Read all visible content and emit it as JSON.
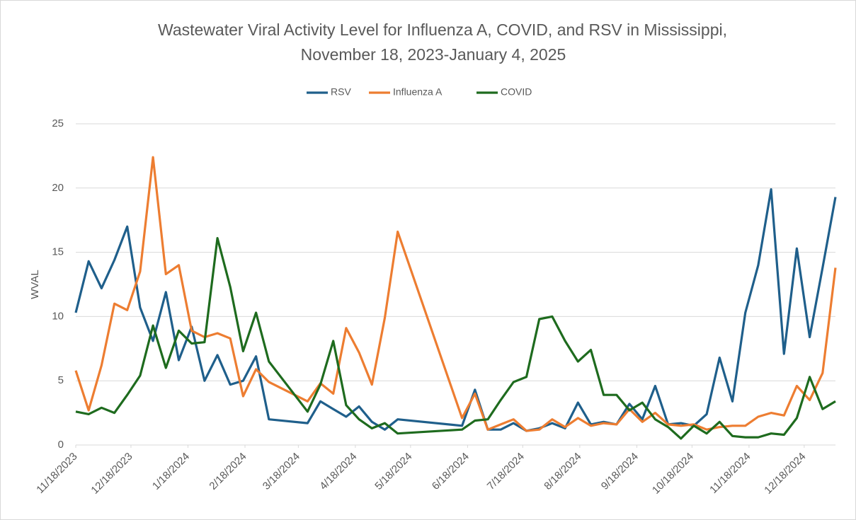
{
  "chart_data": {
    "type": "line",
    "title": [
      "Wastewater Viral Activity Level for Influenza A, COVID,  and RSV  in Mississippi,",
      "November 18, 2023-January 4, 2025"
    ],
    "y_label": "WVAL",
    "x": [
      "2023-11-18",
      "2023-11-25",
      "2023-12-02",
      "2023-12-09",
      "2023-12-16",
      "2023-12-23",
      "2023-12-30",
      "2024-01-06",
      "2024-01-13",
      "2024-01-20",
      "2024-01-27",
      "2024-02-03",
      "2024-02-10",
      "2024-02-17",
      "2024-02-24",
      "2024-03-02",
      "2024-03-23",
      "2024-03-30",
      "2024-04-06",
      "2024-04-13",
      "2024-04-20",
      "2024-04-27",
      "2024-05-04",
      "2024-05-11",
      "2024-06-15",
      "2024-06-22",
      "2024-06-29",
      "2024-07-06",
      "2024-07-13",
      "2024-07-20",
      "2024-07-27",
      "2024-08-03",
      "2024-08-10",
      "2024-08-17",
      "2024-08-24",
      "2024-08-31",
      "2024-09-07",
      "2024-09-14",
      "2024-09-21",
      "2024-09-28",
      "2024-10-05",
      "2024-10-12",
      "2024-10-19",
      "2024-10-26",
      "2024-11-02",
      "2024-11-09",
      "2024-11-16",
      "2024-11-23",
      "2024-11-30",
      "2024-12-07",
      "2024-12-14",
      "2024-12-21",
      "2024-12-28",
      "2025-01-04"
    ],
    "series": [
      {
        "name": "RSV",
        "color": "#1f5f8b",
        "values": [
          10.3,
          14.3,
          12.2,
          14.4,
          17.0,
          10.7,
          8.1,
          11.9,
          6.6,
          9.2,
          5.0,
          7.0,
          4.7,
          5.0,
          6.9,
          2.0,
          1.7,
          3.4,
          2.8,
          2.2,
          3.0,
          1.8,
          1.2,
          2.0,
          1.5,
          4.3,
          1.2,
          1.2,
          1.7,
          1.1,
          1.3,
          1.7,
          1.3,
          3.3,
          1.6,
          1.8,
          1.6,
          3.2,
          2.0,
          4.6,
          1.6,
          1.7,
          1.5,
          2.4,
          6.8,
          3.4,
          10.3,
          14.0,
          19.9,
          7.1,
          15.3,
          8.4,
          13.8,
          19.3
        ]
      },
      {
        "name": "Influenza A",
        "color": "#ed7d31",
        "values": [
          5.8,
          2.7,
          6.2,
          11.0,
          10.5,
          13.5,
          22.4,
          13.3,
          14.0,
          8.9,
          8.4,
          8.7,
          8.3,
          3.8,
          5.9,
          4.9,
          3.4,
          4.8,
          4.0,
          9.1,
          7.2,
          4.7,
          9.9,
          16.6,
          2.1,
          4.0,
          1.2,
          1.6,
          2.0,
          1.1,
          1.2,
          2.0,
          1.4,
          2.1,
          1.5,
          1.7,
          1.6,
          2.8,
          1.8,
          2.5,
          1.6,
          1.5,
          1.6,
          1.2,
          1.4,
          1.5,
          1.5,
          2.2,
          2.5,
          2.3,
          4.6,
          3.5,
          5.6,
          13.8
        ]
      },
      {
        "name": "COVID",
        "color": "#1e6b1e",
        "values": [
          2.6,
          2.4,
          2.9,
          2.5,
          3.9,
          5.4,
          9.3,
          6.0,
          8.9,
          7.9,
          8.0,
          16.1,
          12.3,
          7.3,
          10.3,
          6.5,
          2.6,
          4.7,
          8.1,
          3.1,
          2.0,
          1.3,
          1.7,
          0.9,
          1.2,
          1.9,
          2.0,
          3.5,
          4.9,
          5.3,
          9.8,
          10.0,
          8.1,
          6.5,
          7.4,
          3.9,
          3.9,
          2.7,
          3.3,
          2.0,
          1.4,
          0.5,
          1.5,
          0.9,
          1.8,
          0.7,
          0.6,
          0.6,
          0.9,
          0.8,
          2.1,
          5.3,
          2.8,
          3.4
        ]
      }
    ],
    "xlim": [
      "2023-11-18",
      "2025-01-04"
    ],
    "xticks": [
      {
        "value": "2023-11-18",
        "label": "11/18/2023"
      },
      {
        "value": "2023-12-18",
        "label": "12/18/2023"
      },
      {
        "value": "2024-01-18",
        "label": "1/18/2024"
      },
      {
        "value": "2024-02-18",
        "label": "2/18/2024"
      },
      {
        "value": "2024-03-18",
        "label": "3/18/2024"
      },
      {
        "value": "2024-04-18",
        "label": "4/18/2024"
      },
      {
        "value": "2024-05-18",
        "label": "5/18/2024"
      },
      {
        "value": "2024-06-18",
        "label": "6/18/2024"
      },
      {
        "value": "2024-07-18",
        "label": "7/18/2024"
      },
      {
        "value": "2024-08-18",
        "label": "8/18/2024"
      },
      {
        "value": "2024-09-18",
        "label": "9/18/2024"
      },
      {
        "value": "2024-10-18",
        "label": "10/18/2024"
      },
      {
        "value": "2024-11-18",
        "label": "11/18/2024"
      },
      {
        "value": "2024-12-18",
        "label": "12/18/2024"
      }
    ],
    "ylim": [
      0,
      25
    ],
    "yticks": [
      0,
      5,
      10,
      15,
      20,
      25
    ],
    "grid": true,
    "legend": "top"
  }
}
